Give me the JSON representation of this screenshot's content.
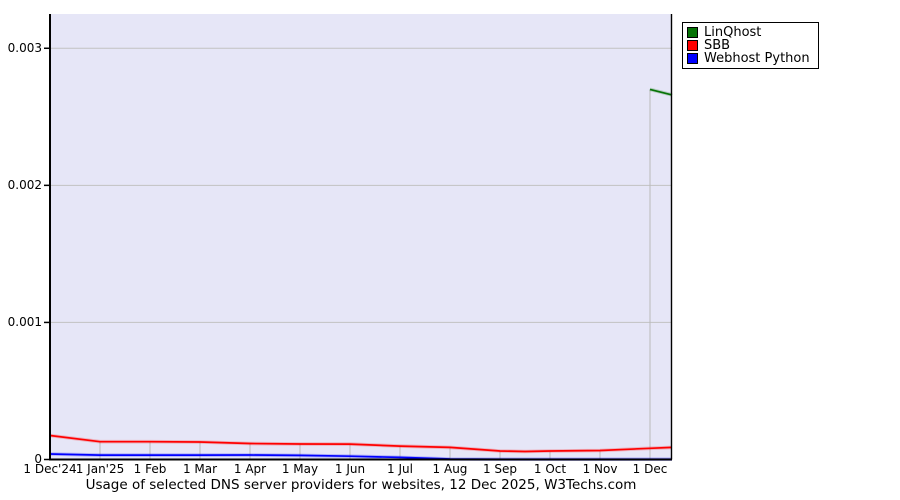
{
  "chart_data": {
    "type": "line",
    "title": "Usage of selected DNS server providers for websites, 12 Dec 2025, W3Techs.com",
    "x_tick_labels": [
      "1 Dec'24",
      "1 Jan'25",
      "1 Feb",
      "1 Mar",
      "1 Apr",
      "1 May",
      "1 Jun",
      "1 Jul",
      "1 Aug",
      "1 Sep",
      "1 Oct",
      "1 Nov",
      "1 Dec"
    ],
    "x_tick_positions": [
      0,
      1,
      2,
      3,
      4,
      5,
      6,
      7,
      8,
      9,
      10,
      11,
      12
    ],
    "y_tick_labels": [
      "0",
      "0.001",
      "0.002",
      "0.003"
    ],
    "y_tick_values": [
      0,
      0.001,
      0.002,
      0.003
    ],
    "xlim": [
      0,
      12.44
    ],
    "ylim": [
      0,
      0.00325
    ],
    "grid": "horizontal-full-width; vertical-lines-at-each-month-up-to-series-max",
    "legend_position": "top-right-outside-plot",
    "series": [
      {
        "name": "LinQhost",
        "color": "#067306",
        "points": [
          [
            12,
            0.0027
          ],
          [
            12.44,
            0.00266
          ]
        ]
      },
      {
        "name": "SBB",
        "color": "#ff0000",
        "points": [
          [
            0,
            0.000175
          ],
          [
            1,
            0.00013
          ],
          [
            2,
            0.00013
          ],
          [
            3,
            0.000128
          ],
          [
            4,
            0.000117
          ],
          [
            5,
            0.000113
          ],
          [
            6,
            0.000112
          ],
          [
            7,
            9.8e-05
          ],
          [
            8,
            8.8e-05
          ],
          [
            9,
            6.2e-05
          ],
          [
            9.5,
            5.8e-05
          ],
          [
            10,
            6.2e-05
          ],
          [
            11,
            6.6e-05
          ],
          [
            12,
            8.2e-05
          ],
          [
            12.44,
            8.8e-05
          ]
        ]
      },
      {
        "name": "Webhost Python",
        "color": "#0000ff",
        "points": [
          [
            0,
            4e-05
          ],
          [
            1,
            3.2e-05
          ],
          [
            2,
            3.2e-05
          ],
          [
            3,
            3.2e-05
          ],
          [
            4,
            3.3e-05
          ],
          [
            5,
            3e-05
          ],
          [
            6,
            2.4e-05
          ],
          [
            7,
            1.5e-05
          ],
          [
            8,
            4e-06
          ],
          [
            9,
            2e-06
          ],
          [
            10,
            2e-06
          ],
          [
            11,
            2e-06
          ],
          [
            12,
            2e-06
          ],
          [
            12.44,
            2e-06
          ]
        ]
      }
    ]
  },
  "colors": {
    "page_bg": "#ffffff",
    "plot_bg": "#e6e6f7",
    "h_grid": "#c2c2c2",
    "v_grid": "#b9b9b9",
    "axis": "#000000"
  }
}
